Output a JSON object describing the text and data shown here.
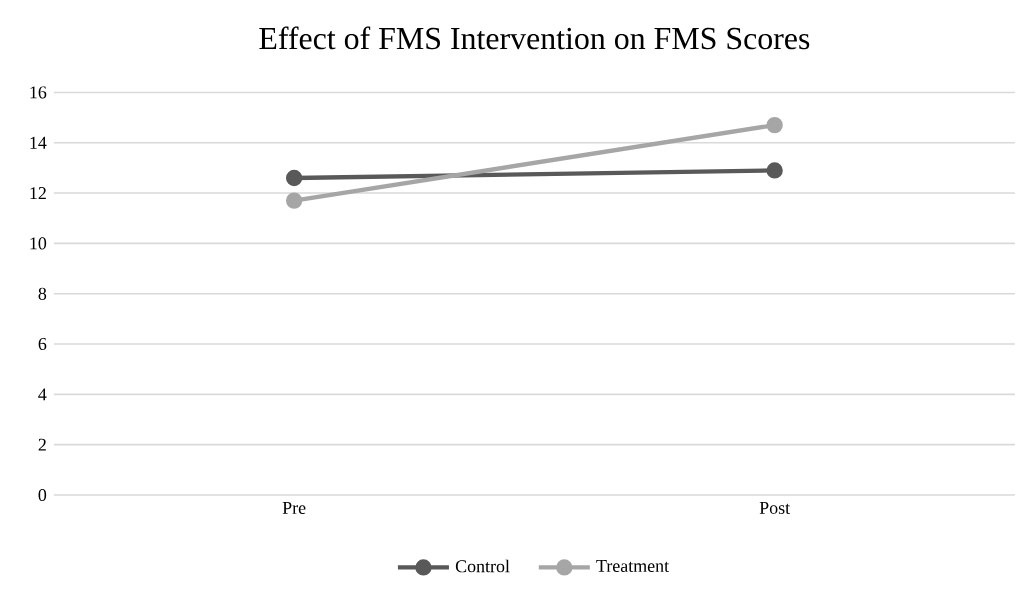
{
  "chart_data": {
    "type": "line",
    "title": "Effect of FMS Intervention on FMS Scores",
    "categories": [
      "Pre",
      "Post"
    ],
    "series": [
      {
        "name": "Control",
        "color": "#595959",
        "values": [
          12.6,
          12.9
        ]
      },
      {
        "name": "Treatment",
        "color": "#a6a6a6",
        "values": [
          11.7,
          14.7
        ]
      }
    ],
    "ylim": [
      0,
      16
    ],
    "yticks": [
      0,
      2,
      4,
      6,
      8,
      10,
      12,
      14,
      16
    ],
    "grid": "y",
    "legend": "bottom",
    "marker": "circle",
    "line_style": "solid"
  }
}
